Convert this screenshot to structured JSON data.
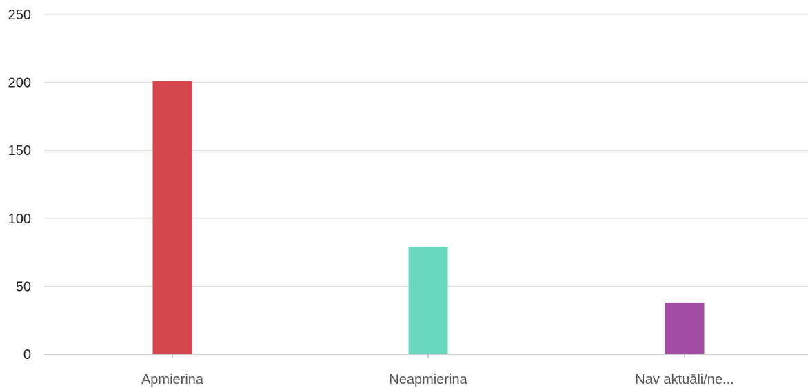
{
  "chart_data": {
    "type": "bar",
    "categories": [
      "Apmierina",
      "Neapmierina",
      "Nav aktuāli/ne..."
    ],
    "values": [
      201,
      79,
      38
    ],
    "colors": [
      "#d5474b",
      "#68d7bd",
      "#a34ca3"
    ],
    "title": "",
    "xlabel": "",
    "ylabel": "",
    "ylim": [
      0,
      250
    ],
    "yticks": [
      0,
      50,
      100,
      150,
      200,
      250
    ],
    "grid": true,
    "legend": "none"
  }
}
